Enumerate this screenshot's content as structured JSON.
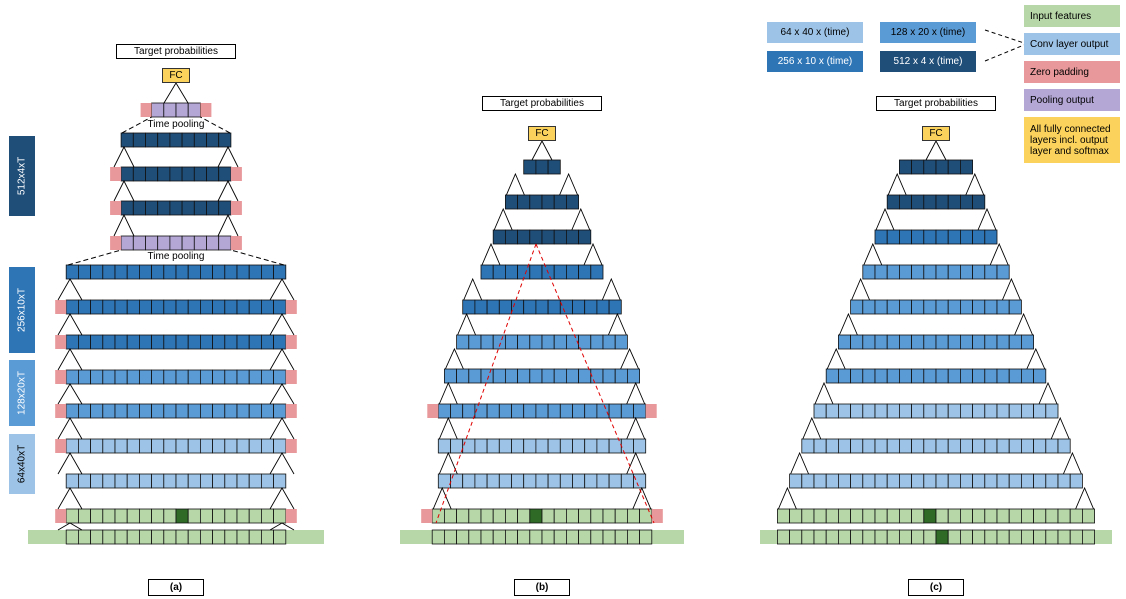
{
  "colors": {
    "input": "#B7D7A8",
    "input_dark": "#2F6B26",
    "conv_light": "#9DC3E6",
    "conv_mid": "#5B9BD5",
    "conv_dark": "#2E75B6",
    "conv_darkest": "#1F4E79",
    "zero_pad": "#E8989A",
    "pool": "#B4A7D6",
    "fc": "#FBD35C",
    "receptive_field": "#E00000"
  },
  "panels": {
    "a": {
      "target": "Target probabilities",
      "fc": "FC",
      "pool_label_1": "Time pooling",
      "pool_label_2": "Time pooling",
      "caption": "(a)"
    },
    "b": {
      "target": "Target probabilities",
      "fc": "FC",
      "caption": "(b)"
    },
    "c": {
      "target": "Target probabilities",
      "fc": "FC",
      "caption": "(c)"
    }
  },
  "sidebar": [
    {
      "label": "512x4xT",
      "color": "#1F4E79"
    },
    {
      "label": "256x10xT",
      "color": "#2E75B6"
    },
    {
      "label": "128x20xT",
      "color": "#5B9BD5"
    },
    {
      "label": "64x40xT",
      "color": "#9DC3E6"
    }
  ],
  "shapes": [
    {
      "label": "64 x 40 x (time)",
      "color": "#9DC3E6",
      "text_color": "#000000"
    },
    {
      "label": "128 x 20 x (time)",
      "color": "#5B9BD5",
      "text_color": "#000000"
    },
    {
      "label": "256 x 10 x (time)",
      "color": "#2E75B6",
      "text_color": "#ffffff"
    },
    {
      "label": "512 x 4  x (time)",
      "color": "#1F4E79",
      "text_color": "#ffffff"
    }
  ],
  "legend": [
    {
      "label": "Input features",
      "color": "#B7D7A8"
    },
    {
      "label": "Conv layer output",
      "color": "#9DC3E6"
    },
    {
      "label": "Zero padding",
      "color": "#E8989A"
    },
    {
      "label": "Pooling output",
      "color": "#B4A7D6"
    },
    {
      "label": "All fully connected layers incl. output layer and  softmax",
      "color": "#FBD35C"
    }
  ]
}
